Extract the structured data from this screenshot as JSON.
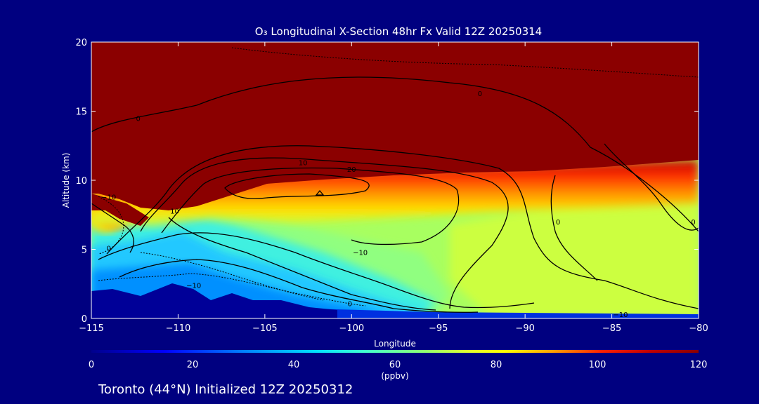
{
  "chart_data": {
    "type": "heatmap",
    "title": "O₃ Longitudinal X-Section 48hr  Fx Valid 12Z 20250314",
    "xlabel": "Longitude",
    "ylabel": "Altitude (km)",
    "xlim": [
      -115,
      -80
    ],
    "ylim": [
      0,
      20
    ],
    "x_ticks": [
      -115,
      -110,
      -105,
      -100,
      -95,
      -90,
      -85,
      -80
    ],
    "x_tick_labels": [
      "−115",
      "−110",
      "−105",
      "−100",
      "−95",
      "−90",
      "−85",
      "−80"
    ],
    "y_ticks": [
      0,
      5,
      10,
      15,
      20
    ],
    "y_tick_labels": [
      "0",
      "5",
      "10",
      "15",
      "20"
    ],
    "colorbar": {
      "min": 0,
      "max": 120,
      "ticks": [
        0,
        20,
        40,
        60,
        80,
        100,
        120
      ],
      "tick_labels": [
        "0",
        "20",
        "40",
        "60",
        "80",
        "100",
        "120"
      ],
      "units": "(ppbv)",
      "colors": [
        "#00008c",
        "#0000ff",
        "#0080ff",
        "#00e0ff",
        "#40ffd0",
        "#90ff70",
        "#e0ff30",
        "#ffff00",
        "#ffa000",
        "#ff2000",
        "#c00000",
        "#8b0000"
      ]
    },
    "contour_labels": [
      {
        "text": "0",
        "lon": -112.3,
        "alt": 14.5
      },
      {
        "text": "0",
        "lon": -92.6,
        "alt": 16.3
      },
      {
        "text": "10",
        "lon": -102.8,
        "alt": 11.3
      },
      {
        "text": "20",
        "lon": -100.0,
        "alt": 10.8
      },
      {
        "text": "−10",
        "lon": -114.0,
        "alt": 8.8
      },
      {
        "text": "10",
        "lon": -110.2,
        "alt": 7.8
      },
      {
        "text": "0",
        "lon": -114.0,
        "alt": 5.1
      },
      {
        "text": "−10",
        "lon": -99.5,
        "alt": 4.8
      },
      {
        "text": "0",
        "lon": -88.1,
        "alt": 7.0
      },
      {
        "text": "0",
        "lon": -80.3,
        "alt": 7.0
      },
      {
        "text": "−10",
        "lon": -109.1,
        "alt": 2.4
      },
      {
        "text": "0",
        "lon": -100.1,
        "alt": 1.1
      },
      {
        "text": "−10",
        "lon": -84.5,
        "alt": 0.3
      }
    ],
    "location_label": "Toronto (44°N) Initialized 12Z 20250312"
  },
  "colors": {
    "background": "#000080",
    "high_ozone": "#8b0000"
  }
}
